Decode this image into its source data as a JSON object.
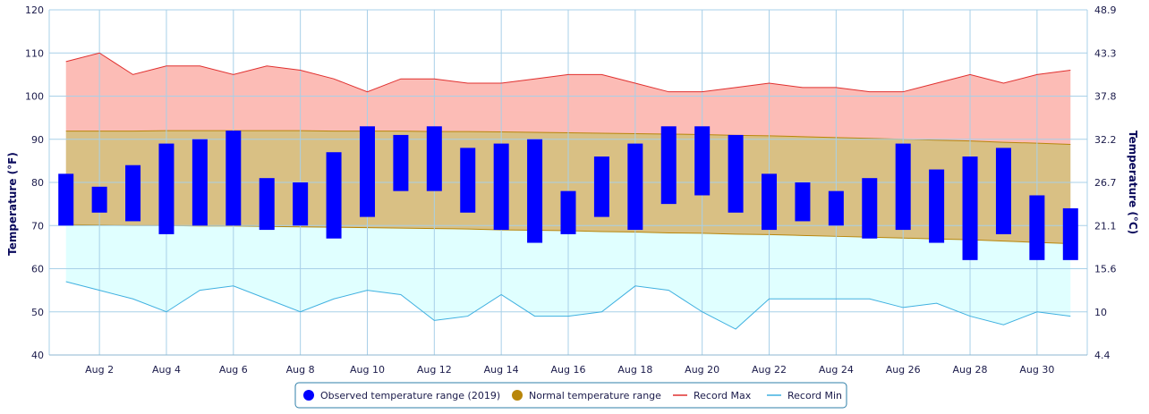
{
  "chart_data": {
    "type": "area",
    "x": [
      "Aug 1",
      "Aug 2",
      "Aug 3",
      "Aug 4",
      "Aug 5",
      "Aug 6",
      "Aug 7",
      "Aug 8",
      "Aug 9",
      "Aug 10",
      "Aug 11",
      "Aug 12",
      "Aug 13",
      "Aug 14",
      "Aug 15",
      "Aug 16",
      "Aug 17",
      "Aug 18",
      "Aug 19",
      "Aug 20",
      "Aug 21",
      "Aug 22",
      "Aug 23",
      "Aug 24",
      "Aug 25",
      "Aug 26",
      "Aug 27",
      "Aug 28",
      "Aug 29",
      "Aug 30",
      "Aug 31"
    ],
    "x_tick_labels": [
      "Aug 2",
      "Aug 4",
      "Aug 6",
      "Aug 8",
      "Aug 10",
      "Aug 12",
      "Aug 14",
      "Aug 16",
      "Aug 18",
      "Aug 20",
      "Aug 22",
      "Aug 24",
      "Aug 26",
      "Aug 28",
      "Aug 30"
    ],
    "ylabel": "Temperature (°F)",
    "ylabel_right": "Temperature (°C)",
    "ylim": [
      40,
      120
    ],
    "y_ticks": [
      40,
      50,
      60,
      70,
      80,
      90,
      100,
      110,
      120
    ],
    "y_right_ticks": [
      "4.4",
      "10",
      "15.6",
      "21.1",
      "26.7",
      "32.2",
      "37.8",
      "43.3",
      "48.9"
    ],
    "grid": true,
    "legend_position": "bottom-center",
    "series": [
      {
        "name": "Observed temperature range (2019)",
        "kind": "range-bar",
        "color": "#0000ff",
        "low": [
          70,
          73,
          71,
          68,
          70,
          70,
          69,
          70,
          67,
          72,
          78,
          78,
          73,
          69,
          66,
          68,
          72,
          69,
          75,
          77,
          73,
          69,
          71,
          70,
          67,
          69,
          66,
          62,
          68,
          62,
          62
        ],
        "high": [
          82,
          79,
          84,
          89,
          90,
          92,
          81,
          80,
          87,
          93,
          91,
          93,
          88,
          89,
          90,
          78,
          86,
          89,
          93,
          93,
          91,
          82,
          80,
          78,
          81,
          89,
          83,
          86,
          88,
          77,
          74
        ]
      },
      {
        "name": "Normal temperature range",
        "kind": "area-range",
        "color": "#b8860b",
        "low": [
          70.2,
          70.1,
          70.0,
          70.0,
          69.9,
          69.9,
          69.8,
          69.7,
          69.6,
          69.5,
          69.4,
          69.3,
          69.2,
          69.0,
          68.9,
          68.8,
          68.6,
          68.5,
          68.3,
          68.2,
          68.0,
          67.9,
          67.7,
          67.5,
          67.3,
          67.1,
          66.9,
          66.7,
          66.4,
          66.1,
          65.8
        ],
        "high": [
          91.9,
          91.9,
          91.9,
          92.0,
          92.0,
          92.0,
          92.0,
          92.0,
          91.9,
          91.9,
          91.9,
          91.8,
          91.8,
          91.7,
          91.6,
          91.5,
          91.4,
          91.3,
          91.2,
          91.1,
          90.9,
          90.8,
          90.6,
          90.4,
          90.2,
          90.0,
          89.8,
          89.6,
          89.3,
          89.1,
          88.8
        ]
      },
      {
        "name": "Record Max",
        "kind": "line",
        "color": "#e0302f",
        "values": [
          108,
          110,
          105,
          107,
          107,
          105,
          107,
          106,
          104,
          101,
          104,
          104,
          103,
          103,
          104,
          105,
          105,
          103,
          101,
          101,
          102,
          103,
          102,
          102,
          101,
          101,
          103,
          105,
          103,
          105,
          106
        ]
      },
      {
        "name": "Record Min",
        "kind": "line",
        "color": "#3fb0e0",
        "values": [
          57,
          55,
          53,
          50,
          55,
          56,
          53,
          50,
          53,
          55,
          54,
          48,
          49,
          54,
          49,
          49,
          50,
          56,
          55,
          50,
          46,
          53,
          53,
          53,
          53,
          51,
          52,
          49,
          47,
          50,
          49
        ]
      }
    ],
    "colors": {
      "record_band_fill": "#fcbcb6",
      "normal_band_fill": "#d9c084",
      "low_band_fill": "#e0ffff",
      "grid": "#a8d0e8",
      "axis_title": "#0a0a5c",
      "legend_border": "#2f7fa8"
    }
  }
}
